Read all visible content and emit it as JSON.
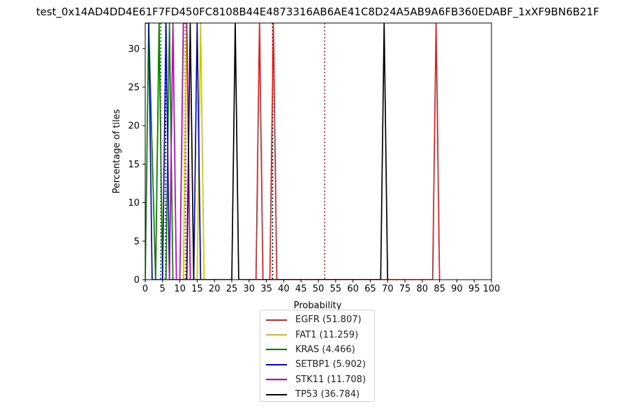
{
  "chart_data": {
    "type": "line",
    "title": "test_0x14AD4DD4E61F7FD450FC8108B44E4873316AB6AE41C8D24A5AB9A6FB360EDABF_1xXF9BN6B21F",
    "xlabel": "Probability",
    "ylabel": "Percentage of tiles",
    "xlim": [
      0,
      100
    ],
    "ylim": [
      0,
      33.33
    ],
    "xticks": [
      0,
      5,
      10,
      15,
      20,
      25,
      30,
      35,
      40,
      45,
      50,
      55,
      60,
      65,
      70,
      75,
      80,
      85,
      90,
      95,
      100
    ],
    "yticks": [
      0,
      5,
      10,
      15,
      20,
      25,
      30
    ],
    "grid": false,
    "legend_position": "below-center",
    "series": [
      {
        "name": "EGFR (51.807)",
        "color": "#e41a1c",
        "style": "solid",
        "x": [
          32,
          33,
          34,
          36,
          37,
          38,
          83,
          84,
          85
        ],
        "y": [
          0,
          33.33,
          0,
          0,
          33.33,
          0,
          0,
          33.33,
          0
        ]
      },
      {
        "name": "FAT1 (11.259)",
        "color": "#c8c800",
        "style": "solid",
        "x": [
          3,
          4,
          5,
          11,
          12,
          13,
          15,
          16,
          17
        ],
        "y": [
          0,
          33.33,
          0,
          0,
          33.33,
          0,
          0,
          33.33,
          0
        ]
      },
      {
        "name": "KRAS (4.466)",
        "color": "#008000",
        "style": "solid",
        "x": [
          0,
          1,
          3,
          4,
          5,
          6,
          7,
          8
        ],
        "y": [
          0,
          33.33,
          0,
          33.33,
          0,
          0,
          33.33,
          0
        ]
      },
      {
        "name": "SETBP1 (5.902)",
        "color": "#0000cc",
        "style": "solid",
        "x": [
          0,
          1,
          2,
          5,
          6,
          7,
          14,
          15,
          16
        ],
        "y": [
          33.33,
          33.33,
          0,
          0,
          33.33,
          0,
          0,
          33.33,
          0
        ]
      },
      {
        "name": "STK11 (11.708)",
        "color": "#bf00bf",
        "style": "solid",
        "x": [
          7,
          8,
          9,
          10,
          11,
          12,
          13
        ],
        "y": [
          0,
          33.33,
          0,
          0,
          33.33,
          33.33,
          0
        ]
      },
      {
        "name": "TP53 (36.784)",
        "color": "#000000",
        "style": "solid",
        "x": [
          12,
          13,
          14,
          25,
          26,
          27,
          68,
          69,
          70
        ],
        "y": [
          0,
          33.33,
          0,
          0,
          33.33,
          0,
          0,
          33.33,
          0
        ]
      }
    ],
    "mean_lines": [
      {
        "x": 51.807,
        "color": "#e41a1c"
      },
      {
        "x": 11.259,
        "color": "#c8c800"
      },
      {
        "x": 4.466,
        "color": "#008000"
      },
      {
        "x": 5.902,
        "color": "#0000cc"
      },
      {
        "x": 11.708,
        "color": "#bf00bf"
      },
      {
        "x": 36.784,
        "color": "#000000"
      }
    ]
  }
}
